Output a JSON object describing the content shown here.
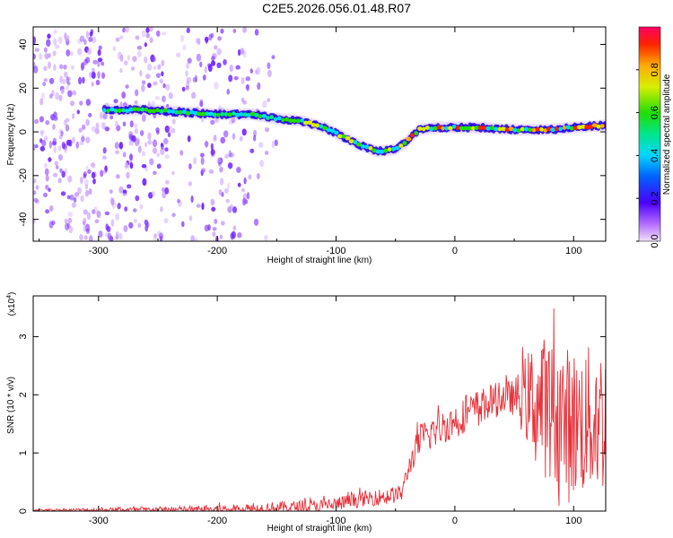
{
  "chart_data": [
    {
      "type": "heatmap",
      "title": "C2E5.2026.056.01.48.R07",
      "xlabel": "Height of straight line (km)",
      "ylabel": "Frequency (Hz)",
      "xlim": [
        -355,
        127
      ],
      "ylim": [
        -50,
        48
      ],
      "xticks": [
        -300,
        -200,
        -100,
        0,
        100
      ],
      "xtick_labels": [
        "-300",
        "-200",
        "-100",
        "0",
        "100"
      ],
      "yticks": [
        -40,
        -20,
        0,
        20,
        40
      ],
      "ytick_labels": [
        "-40",
        "-20",
        "0",
        "20",
        "40"
      ],
      "ridge": {
        "x": [
          -295,
          -260,
          -230,
          -200,
          -170,
          -150,
          -130,
          -110,
          -95,
          -80,
          -65,
          -50,
          -42,
          -30,
          -15,
          0,
          20,
          50,
          80,
          100,
          127
        ],
        "y": [
          10,
          10,
          9,
          8,
          8,
          6,
          5,
          2,
          -2,
          -6,
          -9,
          -8,
          -5,
          1,
          2,
          2,
          2,
          1,
          1,
          2,
          3
        ]
      },
      "colorbar": {
        "label": "Normalized spectral amplitude",
        "range": [
          0,
          1
        ],
        "ticks": [
          0.0,
          0.2,
          0.4,
          0.6,
          0.8
        ],
        "tick_labels": [
          "0.0",
          "0.2",
          "0.4",
          "0.6",
          "0.8"
        ]
      }
    },
    {
      "type": "line",
      "xlabel": "Height of straight line (km)",
      "ylabel": "SNR (10 * v/v)",
      "multiplier": "(x10",
      "multiplier_exp": "4",
      "multiplier_close": ")",
      "xlim": [
        -355,
        127
      ],
      "ylim": [
        0,
        3.7
      ],
      "xticks": [
        -300,
        -200,
        -100,
        0,
        100
      ],
      "xtick_labels": [
        "-300",
        "-200",
        "-100",
        "0",
        "100"
      ],
      "yticks": [
        0,
        1,
        2,
        3
      ],
      "ytick_labels": [
        "0",
        "1",
        "2",
        "3"
      ],
      "series": [
        {
          "name": "SNR",
          "color": "#e8313a",
          "envelope_x": [
            -355,
            -250,
            -180,
            -150,
            -120,
            -100,
            -80,
            -60,
            -45,
            -38,
            -30,
            -20,
            -10,
            0,
            20,
            40,
            60,
            80,
            100,
            127
          ],
          "envelope_y": [
            0.02,
            0.02,
            0.03,
            0.06,
            0.08,
            0.12,
            0.2,
            0.25,
            0.3,
            0.8,
            1.2,
            1.35,
            1.45,
            1.55,
            1.8,
            1.95,
            1.95,
            1.75,
            1.5,
            1.6
          ],
          "noise_x": [
            -355,
            -40,
            -30,
            0,
            50,
            70,
            100,
            127
          ],
          "noise_amp": [
            0.01,
            0.15,
            0.3,
            0.3,
            0.3,
            1.2,
            1.3,
            1.3
          ]
        }
      ]
    }
  ]
}
